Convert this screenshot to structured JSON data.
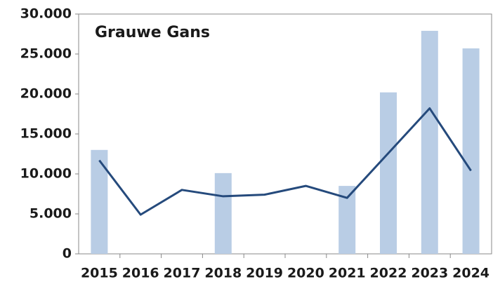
{
  "chart_data": {
    "type": "bar",
    "title": "Grauwe Gans",
    "categories": [
      "2015",
      "2016",
      "2017",
      "2018",
      "2019",
      "2020",
      "2021",
      "2022",
      "2023",
      "2024"
    ],
    "series": [
      {
        "type": "bar",
        "color": "#b9cde5",
        "values": [
          13000,
          null,
          null,
          10100,
          null,
          null,
          8500,
          20200,
          27900,
          25700
        ]
      },
      {
        "type": "line",
        "color": "#254a7c",
        "values": [
          11700,
          4900,
          8000,
          7200,
          7400,
          8500,
          7000,
          12600,
          18200,
          10400
        ]
      }
    ],
    "ylim": [
      0,
      30000
    ],
    "yticks": [
      0,
      {
        "value": 5000,
        "label": "5.000"
      },
      {
        "value": 10000,
        "label": "10.000"
      },
      {
        "value": 15000,
        "label": "15.000"
      },
      {
        "value": 20000,
        "label": "20.000"
      },
      {
        "value": 25000,
        "label": "25.000"
      },
      {
        "value": 30000,
        "label": "30.000"
      }
    ],
    "grid": false
  }
}
